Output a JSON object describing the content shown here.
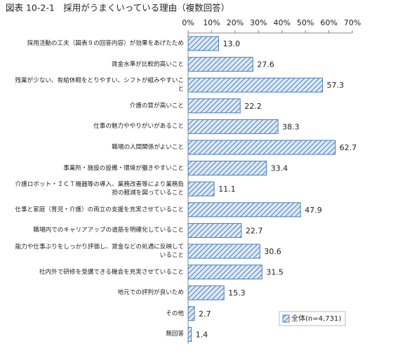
{
  "chart_data": {
    "type": "barh",
    "title": "図表 10-2-1　採用がうまくいっている理由（複数回答）",
    "categories": [
      "採用活動の工夫（図表９の回答内容）が効果をあげたため",
      "賃金水準が比較的高いこと",
      "残業が少ない、有給休暇をとりやすい、シフトが組みやすいこと",
      "介護の質が高いこと",
      "仕事の魅力ややりがいがあること",
      "職場の人間関係がよいこと",
      "事業所・施設の設備・環境が働きやすいこと",
      "介護ロボット・ＩＣＴ機器等の導入、業務改善等により業務負担の軽減を図っていること",
      "仕事と家庭（育児・介護）の両立の支援を充実させていること",
      "職場内でのキャリアアップの道筋を明確化していること",
      "能力や仕事ぶりをしっかり評価し、賃金などの処遇に反映していること",
      "社内外で研修を受講できる機会を充実させていること",
      "地元での評判が良いため",
      "その他",
      "無回答"
    ],
    "series": [
      {
        "name": "全体(n=4,731)",
        "color": "#4a7ebb",
        "values": [
          13.0,
          27.6,
          57.3,
          22.2,
          38.3,
          62.7,
          33.4,
          11.1,
          47.9,
          22.7,
          30.6,
          31.5,
          15.3,
          2.7,
          1.4
        ],
        "value_labels": [
          "13.0",
          "27.6",
          "57.3",
          "22.2",
          "38.3",
          "62.7",
          "33.4",
          "11.1",
          "47.9",
          "22.7",
          "30.6",
          "31.5",
          "15.3",
          "2.7",
          "1.4"
        ]
      }
    ],
    "xlim": [
      0,
      70
    ],
    "xticks": [
      {
        "value": 0,
        "label": "0%"
      },
      {
        "value": 10,
        "label": "10%"
      },
      {
        "value": 20,
        "label": "20%"
      },
      {
        "value": 30,
        "label": "30%"
      },
      {
        "value": 40,
        "label": "40%"
      },
      {
        "value": 50,
        "label": "50%"
      },
      {
        "value": 60,
        "label": "60%"
      },
      {
        "value": 70,
        "label": "70%"
      }
    ],
    "legend": "lower-right"
  }
}
